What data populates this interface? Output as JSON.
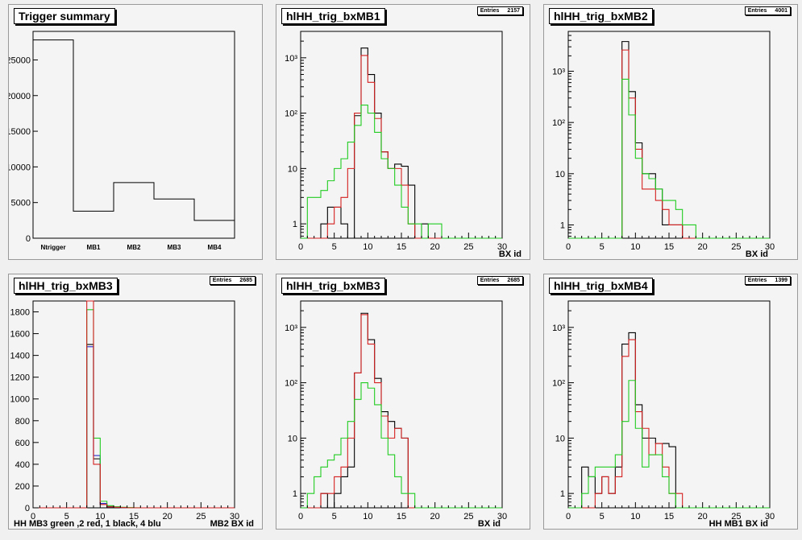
{
  "colors": {
    "black": "#000000",
    "red": "#d42020",
    "green": "#22cc22",
    "blue": "#2a2acc"
  },
  "chart_data": [
    {
      "type": "bar",
      "title": "Trigger summary",
      "categories": [
        "Ntrigger",
        "MB1",
        "MB2",
        "MB3",
        "MB4"
      ],
      "values": [
        27800,
        3800,
        7800,
        5500,
        2500
      ],
      "yticks": [
        0,
        5000,
        10000,
        15000,
        20000,
        25000
      ],
      "ylim": [
        0,
        29000
      ],
      "log": false
    },
    {
      "type": "line",
      "title": "hlHH_trig_bxMB1",
      "stats": {
        "label": "Entries",
        "value": "2157"
      },
      "xlabel": "BX id",
      "xlim": [
        0,
        30
      ],
      "ylim": [
        0.55,
        3000
      ],
      "log": true,
      "xticks": [
        0,
        5,
        10,
        15,
        20,
        25,
        30
      ],
      "yticks": [
        {
          "v": 1,
          "t": "1"
        },
        {
          "v": 10,
          "t": "10"
        },
        {
          "v": 100,
          "t": "10²"
        },
        {
          "v": 1000,
          "t": "10³"
        }
      ],
      "series": [
        {
          "color": "black",
          "values": [
            0,
            0,
            0,
            1,
            2,
            2,
            1,
            0,
            90,
            1500,
            500,
            100,
            20,
            10,
            12,
            11,
            5,
            0,
            1,
            0,
            0,
            0,
            0,
            0,
            0,
            0,
            0,
            0,
            0,
            0
          ]
        },
        {
          "color": "red",
          "values": [
            0,
            0,
            0,
            0,
            1,
            2,
            3,
            10,
            100,
            1100,
            360,
            80,
            20,
            10,
            10,
            5,
            1,
            0,
            0,
            0,
            0,
            0,
            0,
            0,
            0,
            0,
            0,
            0,
            0,
            0
          ]
        },
        {
          "color": "green",
          "values": [
            0,
            3,
            3,
            4,
            6,
            10,
            15,
            30,
            60,
            140,
            100,
            45,
            15,
            10,
            5,
            2,
            1,
            1,
            0,
            1,
            1,
            0,
            0,
            0,
            0,
            0,
            0,
            0,
            0,
            0
          ]
        }
      ]
    },
    {
      "type": "line",
      "title": "hlHH_trig_bxMB2",
      "stats": {
        "label": "Entries",
        "value": "4001"
      },
      "xlabel": "BX id",
      "xlim": [
        0,
        30
      ],
      "ylim": [
        0.55,
        6000
      ],
      "log": true,
      "xticks": [
        0,
        5,
        10,
        15,
        20,
        25,
        30
      ],
      "yticks": [
        {
          "v": 1,
          "t": "1"
        },
        {
          "v": 10,
          "t": "10"
        },
        {
          "v": 100,
          "t": "10²"
        },
        {
          "v": 1000,
          "t": "10³"
        }
      ],
      "series": [
        {
          "color": "black",
          "values": [
            0,
            0,
            0,
            0,
            0,
            0,
            0,
            0,
            3800,
            400,
            40,
            10,
            10,
            5,
            1,
            1,
            1,
            0,
            0,
            0,
            0,
            0,
            0,
            0,
            0,
            0,
            0,
            0,
            0,
            0
          ]
        },
        {
          "color": "red",
          "values": [
            0,
            0,
            0,
            0,
            0,
            0,
            0,
            0,
            2600,
            300,
            30,
            5,
            5,
            3,
            2,
            1,
            1,
            0,
            0,
            0,
            0,
            0,
            0,
            0,
            0,
            0,
            0,
            0,
            0,
            0
          ]
        },
        {
          "color": "green",
          "values": [
            0,
            0,
            0,
            0,
            0,
            0,
            0,
            0,
            700,
            140,
            20,
            10,
            8,
            5,
            3,
            3,
            2,
            1,
            1,
            0,
            0,
            0,
            0,
            0,
            0,
            0,
            0,
            0,
            0,
            0
          ]
        }
      ]
    },
    {
      "type": "line",
      "title": "hlHH_trig_bxMB3",
      "stats": {
        "label": "Entries",
        "value": "2685"
      },
      "xlabel": "MB2 BX id",
      "footnote": "HH  MB3 green ,2 red, 1 black, 4 blu",
      "xlim": [
        0,
        30
      ],
      "ylim": [
        0,
        1900
      ],
      "log": false,
      "xticks": [
        0,
        5,
        10,
        15,
        20,
        25,
        30
      ],
      "yticks": [
        {
          "v": 0,
          "t": "0"
        },
        {
          "v": 200,
          "t": "200"
        },
        {
          "v": 400,
          "t": "400"
        },
        {
          "v": 600,
          "t": "600"
        },
        {
          "v": 800,
          "t": "800"
        },
        {
          "v": 1000,
          "t": "1000"
        },
        {
          "v": 1200,
          "t": "1200"
        },
        {
          "v": 1400,
          "t": "1400"
        },
        {
          "v": 1600,
          "t": "1600"
        },
        {
          "v": 1800,
          "t": "1800"
        }
      ],
      "series": [
        {
          "color": "black",
          "values": [
            0,
            0,
            0,
            0,
            0,
            0,
            0,
            0,
            1500,
            450,
            30,
            10,
            5,
            2,
            0,
            0,
            0,
            0,
            0,
            0,
            0,
            0,
            0,
            0,
            0,
            0,
            0,
            0,
            0,
            0
          ]
        },
        {
          "color": "blue",
          "values": [
            0,
            0,
            0,
            0,
            0,
            0,
            0,
            0,
            1480,
            480,
            40,
            12,
            5,
            2,
            0,
            0,
            0,
            0,
            0,
            0,
            0,
            0,
            0,
            0,
            0,
            0,
            0,
            0,
            0,
            0
          ]
        },
        {
          "color": "green",
          "values": [
            0,
            0,
            0,
            0,
            0,
            0,
            0,
            0,
            1820,
            640,
            60,
            20,
            10,
            5,
            2,
            1,
            0,
            0,
            0,
            0,
            0,
            0,
            0,
            0,
            0,
            0,
            0,
            0,
            0,
            0
          ]
        },
        {
          "color": "red",
          "values": [
            0,
            0,
            0,
            0,
            0,
            0,
            0,
            0,
            1950,
            400,
            30,
            10,
            5,
            2,
            0,
            0,
            0,
            0,
            0,
            0,
            0,
            0,
            0,
            0,
            0,
            0,
            0,
            0,
            0,
            0
          ]
        }
      ]
    },
    {
      "type": "line",
      "title": "hlHH_trig_bxMB3",
      "stats": {
        "label": "Entries",
        "value": "2685"
      },
      "xlabel": "BX id",
      "xlim": [
        0,
        30
      ],
      "ylim": [
        0.55,
        3000
      ],
      "log": true,
      "xticks": [
        0,
        5,
        10,
        15,
        20,
        25,
        30
      ],
      "yticks": [
        {
          "v": 1,
          "t": "1"
        },
        {
          "v": 10,
          "t": "10"
        },
        {
          "v": 100,
          "t": "10²"
        },
        {
          "v": 1000,
          "t": "10³"
        }
      ],
      "series": [
        {
          "color": "black",
          "values": [
            0,
            0,
            0,
            1,
            0,
            1,
            2,
            3,
            150,
            1800,
            600,
            120,
            30,
            20,
            15,
            10,
            0,
            0,
            0,
            0,
            0,
            0,
            0,
            0,
            0,
            0,
            0,
            0,
            0,
            0
          ]
        },
        {
          "color": "red",
          "values": [
            0,
            0,
            0,
            1,
            1,
            2,
            3,
            10,
            150,
            1700,
            500,
            100,
            25,
            10,
            15,
            10,
            0,
            0,
            0,
            0,
            0,
            0,
            0,
            0,
            0,
            0,
            0,
            0,
            0,
            0
          ]
        },
        {
          "color": "green",
          "values": [
            0,
            1,
            2,
            3,
            4,
            5,
            10,
            20,
            50,
            100,
            80,
            40,
            10,
            5,
            2,
            1,
            1,
            0,
            0,
            0,
            0,
            0,
            0,
            0,
            0,
            0,
            0,
            0,
            0,
            0
          ]
        }
      ]
    },
    {
      "type": "line",
      "title": "hlHH_trig_bxMB4",
      "stats": {
        "label": "Entries",
        "value": "1399"
      },
      "xlabel": "HH MB1 BX id",
      "xlim": [
        0,
        30
      ],
      "ylim": [
        0.55,
        3000
      ],
      "log": true,
      "xticks": [
        0,
        5,
        10,
        15,
        20,
        25,
        30
      ],
      "yticks": [
        {
          "v": 1,
          "t": "1"
        },
        {
          "v": 10,
          "t": "10"
        },
        {
          "v": 100,
          "t": "10²"
        },
        {
          "v": 1000,
          "t": "10³"
        }
      ],
      "series": [
        {
          "color": "black",
          "values": [
            0,
            0,
            3,
            2,
            1,
            2,
            1,
            3,
            500,
            800,
            40,
            10,
            10,
            8,
            8,
            7,
            0,
            0,
            0,
            0,
            0,
            0,
            0,
            0,
            0,
            0,
            0,
            0,
            0,
            0
          ]
        },
        {
          "color": "red",
          "values": [
            0,
            0,
            0,
            0,
            1,
            2,
            1,
            2,
            300,
            600,
            30,
            15,
            5,
            8,
            3,
            1,
            1,
            0,
            0,
            0,
            0,
            0,
            0,
            0,
            0,
            0,
            0,
            0,
            0,
            0
          ]
        },
        {
          "color": "green",
          "values": [
            0,
            0,
            1,
            2,
            3,
            3,
            3,
            5,
            20,
            110,
            15,
            3,
            5,
            5,
            2,
            1,
            0,
            0,
            0,
            0,
            0,
            0,
            0,
            0,
            0,
            0,
            0,
            0,
            0,
            0
          ]
        }
      ]
    }
  ]
}
